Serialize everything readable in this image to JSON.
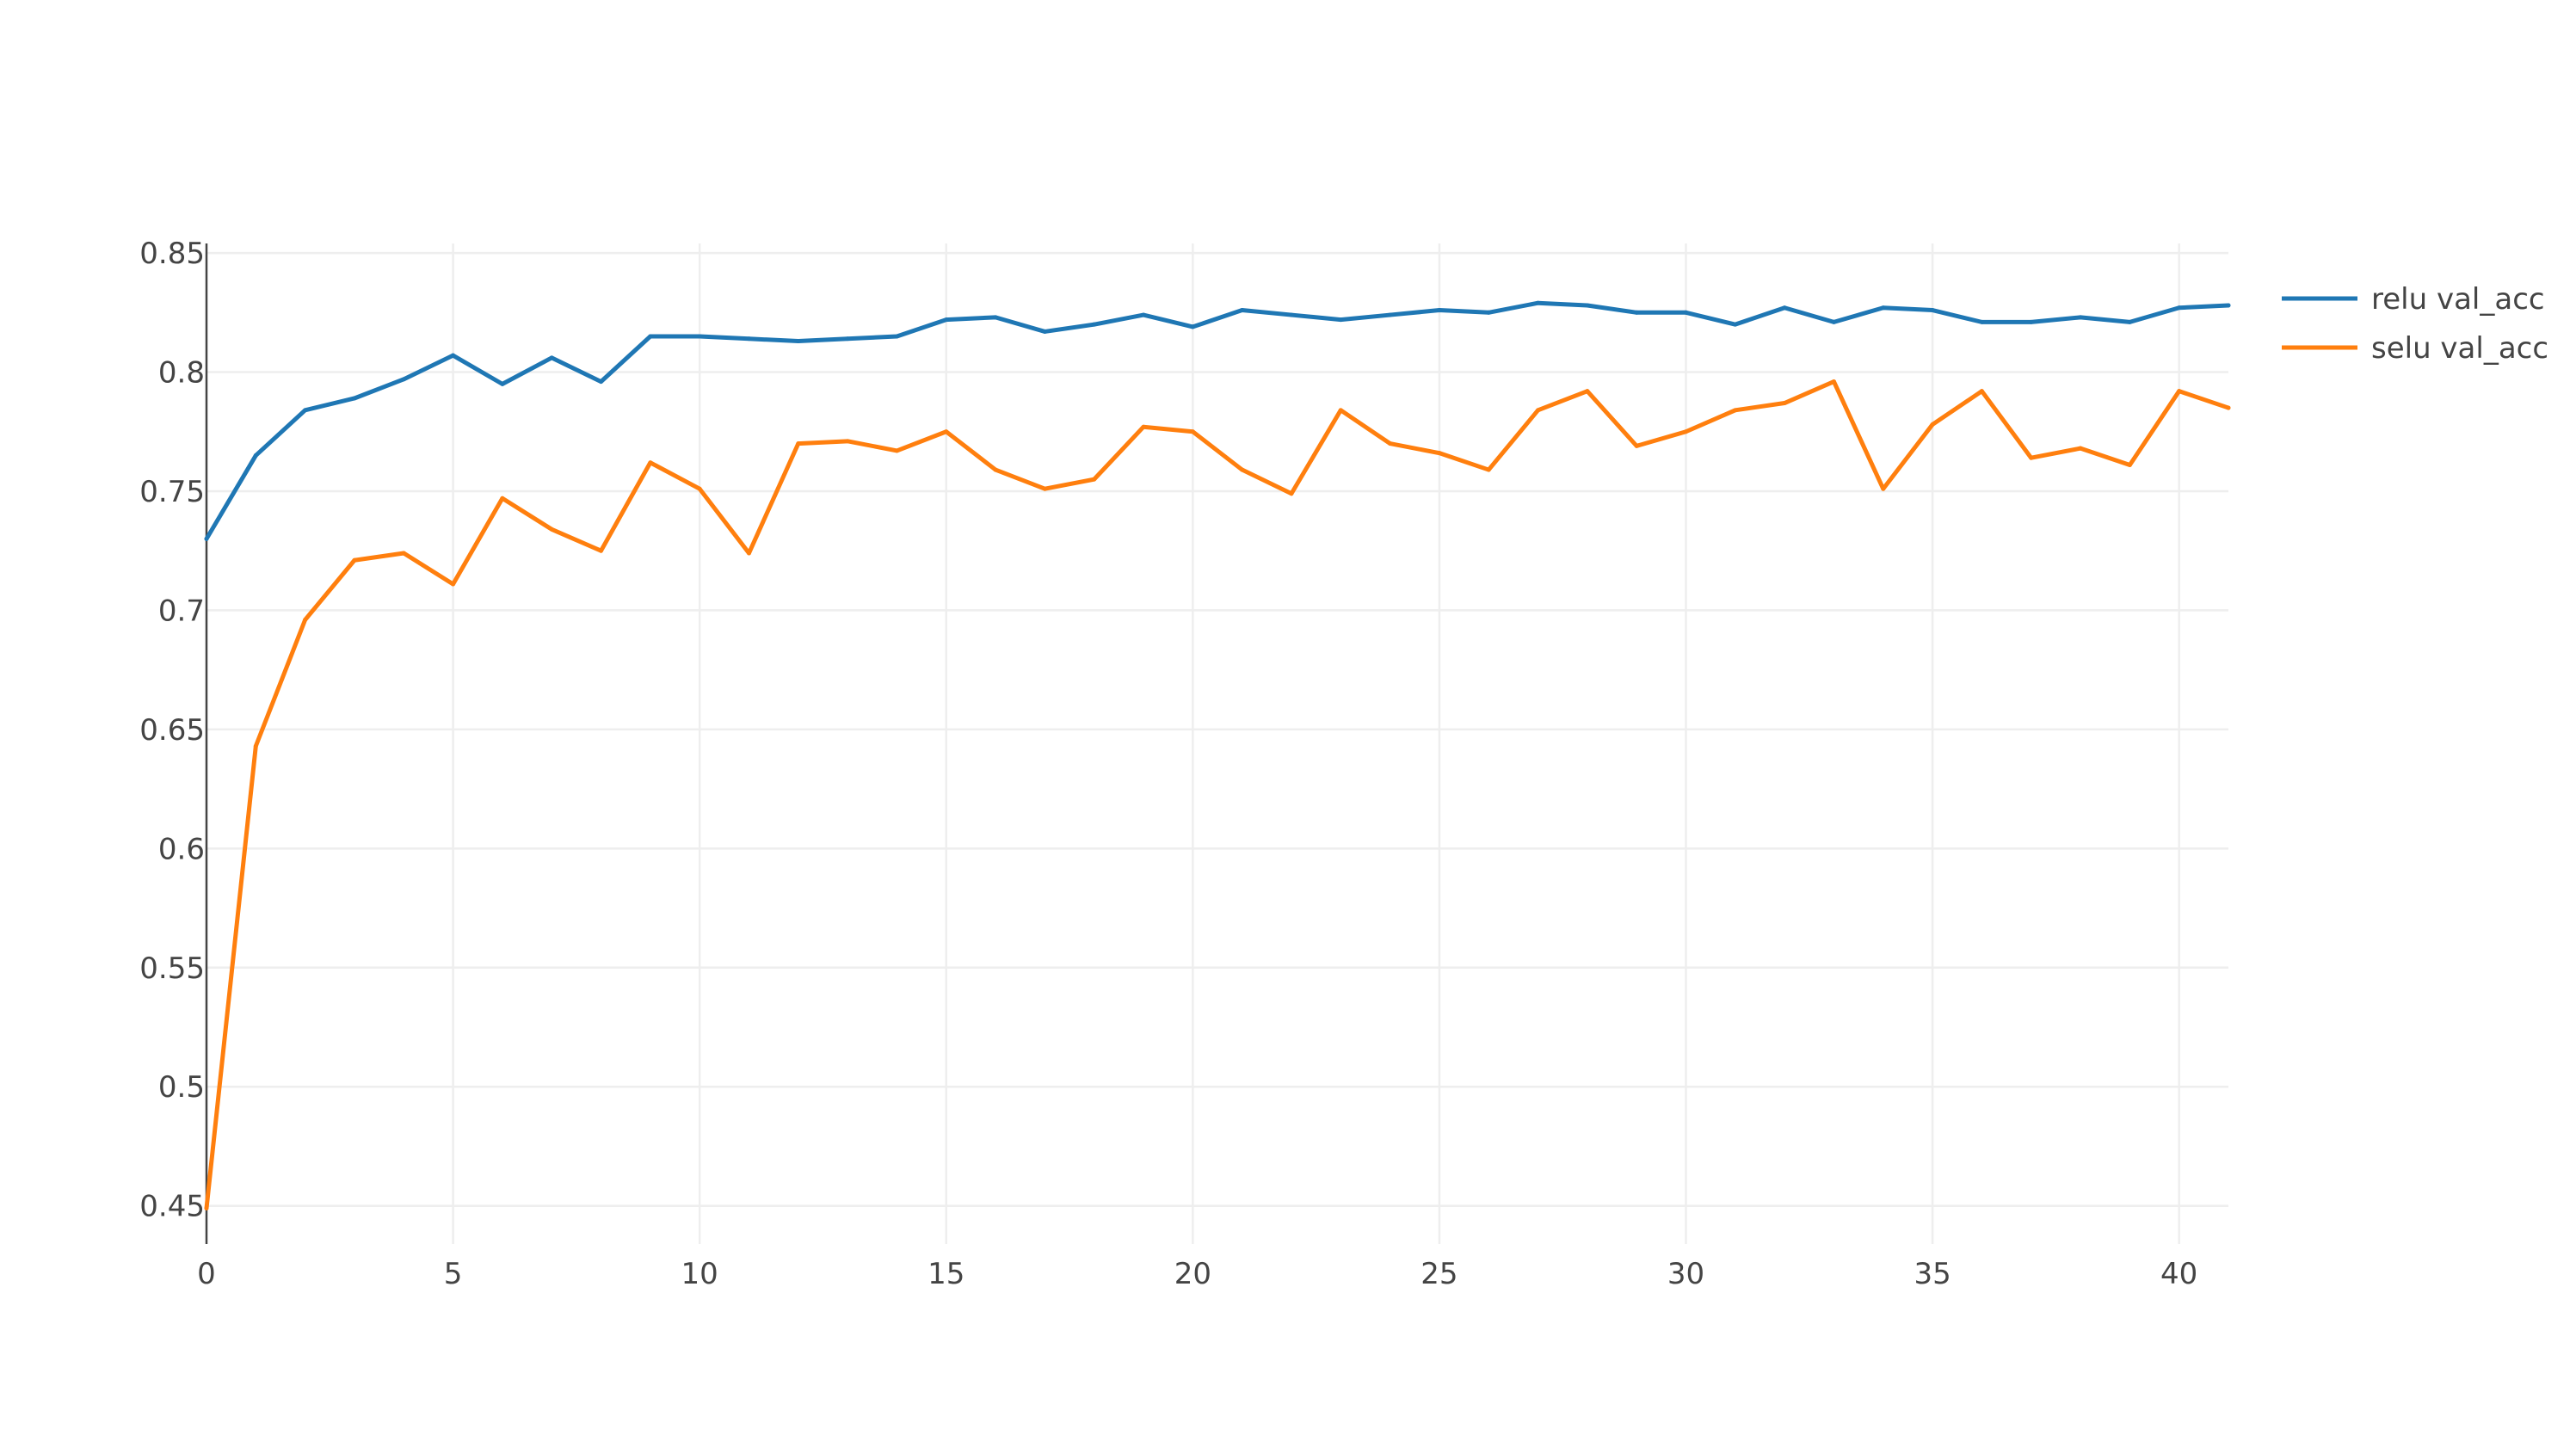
{
  "chart_data": {
    "type": "line",
    "title": "",
    "xlabel": "",
    "ylabel": "",
    "xlim": [
      0,
      41
    ],
    "ylim": [
      0.434,
      0.854
    ],
    "x_ticks": [
      0,
      5,
      10,
      15,
      20,
      25,
      30,
      35,
      40
    ],
    "x_tick_labels": [
      "0",
      "5",
      "10",
      "15",
      "20",
      "25",
      "30",
      "35",
      "40"
    ],
    "y_ticks": [
      0.45,
      0.5,
      0.55,
      0.6,
      0.65,
      0.7,
      0.75,
      0.8,
      0.85
    ],
    "y_tick_labels": [
      "0.45",
      "0.5",
      "0.55",
      "0.6",
      "0.65",
      "0.7",
      "0.75",
      "0.8",
      "0.85"
    ],
    "grid": true,
    "legend_position": "top-right",
    "x": [
      0,
      1,
      2,
      3,
      4,
      5,
      6,
      7,
      8,
      9,
      10,
      11,
      12,
      13,
      14,
      15,
      16,
      17,
      18,
      19,
      20,
      21,
      22,
      23,
      24,
      25,
      26,
      27,
      28,
      29,
      30,
      31,
      32,
      33,
      34,
      35,
      36,
      37,
      38,
      39,
      40,
      41
    ],
    "series": [
      {
        "name": "relu val_acc",
        "color": "#1f77b4",
        "values": [
          0.73,
          0.765,
          0.784,
          0.789,
          0.797,
          0.807,
          0.795,
          0.806,
          0.796,
          0.815,
          0.815,
          0.814,
          0.813,
          0.814,
          0.815,
          0.822,
          0.823,
          0.817,
          0.82,
          0.824,
          0.819,
          0.826,
          0.824,
          0.822,
          0.824,
          0.826,
          0.825,
          0.829,
          0.828,
          0.825,
          0.825,
          0.82,
          0.827,
          0.821,
          0.827,
          0.826,
          0.821,
          0.821,
          0.823,
          0.821,
          0.827,
          0.828
        ]
      },
      {
        "name": "selu val_acc",
        "color": "#ff7f0e",
        "values": [
          0.449,
          0.643,
          0.696,
          0.721,
          0.724,
          0.711,
          0.747,
          0.734,
          0.725,
          0.762,
          0.751,
          0.724,
          0.77,
          0.771,
          0.767,
          0.775,
          0.759,
          0.751,
          0.755,
          0.777,
          0.775,
          0.759,
          0.749,
          0.784,
          0.77,
          0.766,
          0.759,
          0.784,
          0.792,
          0.769,
          0.775,
          0.784,
          0.787,
          0.796,
          0.751,
          0.778,
          0.792,
          0.764,
          0.768,
          0.761,
          0.792,
          0.785
        ]
      }
    ]
  }
}
